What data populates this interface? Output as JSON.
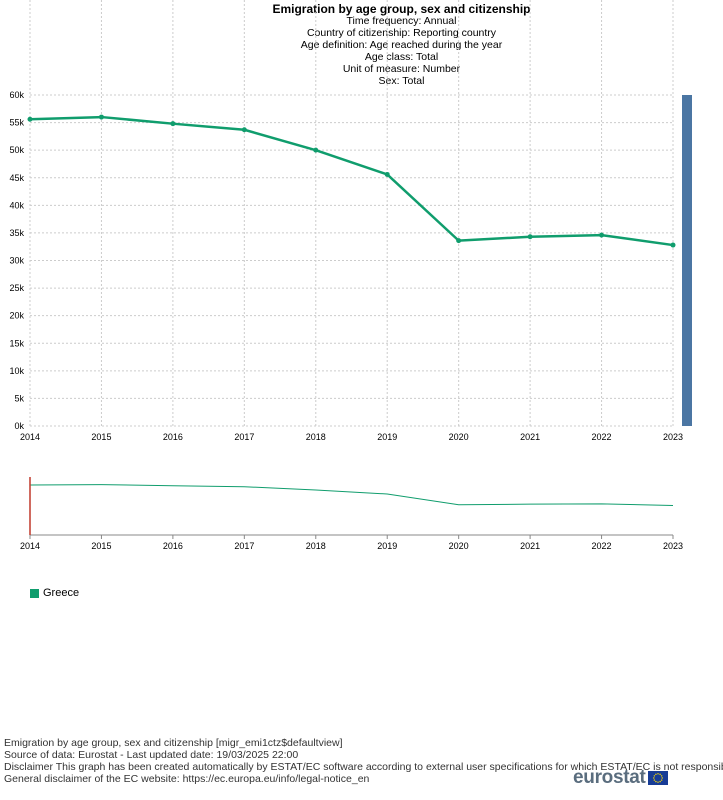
{
  "header": {
    "title": "Emigration by age group, sex and citizenship",
    "subtitles": [
      "Time frequency:  Annual",
      "Country of citizenship:  Reporting country",
      "Age definition:  Age reached during the year",
      "Age class:  Total",
      "Unit of measure:  Number",
      "Sex:  Total"
    ]
  },
  "chart_data": {
    "type": "line",
    "x": [
      "2014",
      "2015",
      "2016",
      "2017",
      "2018",
      "2019",
      "2020",
      "2021",
      "2022",
      "2023"
    ],
    "series": [
      {
        "name": "Greece",
        "color": "#109d6d",
        "values": [
          55600,
          56000,
          54800,
          53700,
          50000,
          45600,
          33600,
          34300,
          34600,
          32800
        ]
      }
    ],
    "ylim": [
      0,
      60000
    ],
    "yticks": [
      "0k",
      "5k",
      "10k",
      "15k",
      "20k",
      "25k",
      "30k",
      "35k",
      "40k",
      "45k",
      "50k",
      "55k",
      "60k"
    ],
    "grid": true,
    "legend_position": "bottom-left",
    "navigator": true
  },
  "legend": {
    "items": [
      {
        "label": "Greece",
        "color": "#109d6d"
      }
    ]
  },
  "footer": {
    "lines": [
      "Emigration by age group, sex and citizenship [migr_emi1ctz$defaultview]",
      "Source of data: Eurostat - Last updated date: 19/03/2025 22:00",
      "Disclaimer This graph has been created automatically by ESTAT/EC software according to external user specifications for which ESTAT/EC is not responsible. C",
      "General disclaimer of the EC website: https://ec.europa.eu/info/legal-notice_en"
    ],
    "logo_text": "eurostat"
  },
  "colors": {
    "scrollbar": "#4b76a3",
    "navigator_handle": "#c0392b",
    "grid": "#cccccc"
  }
}
